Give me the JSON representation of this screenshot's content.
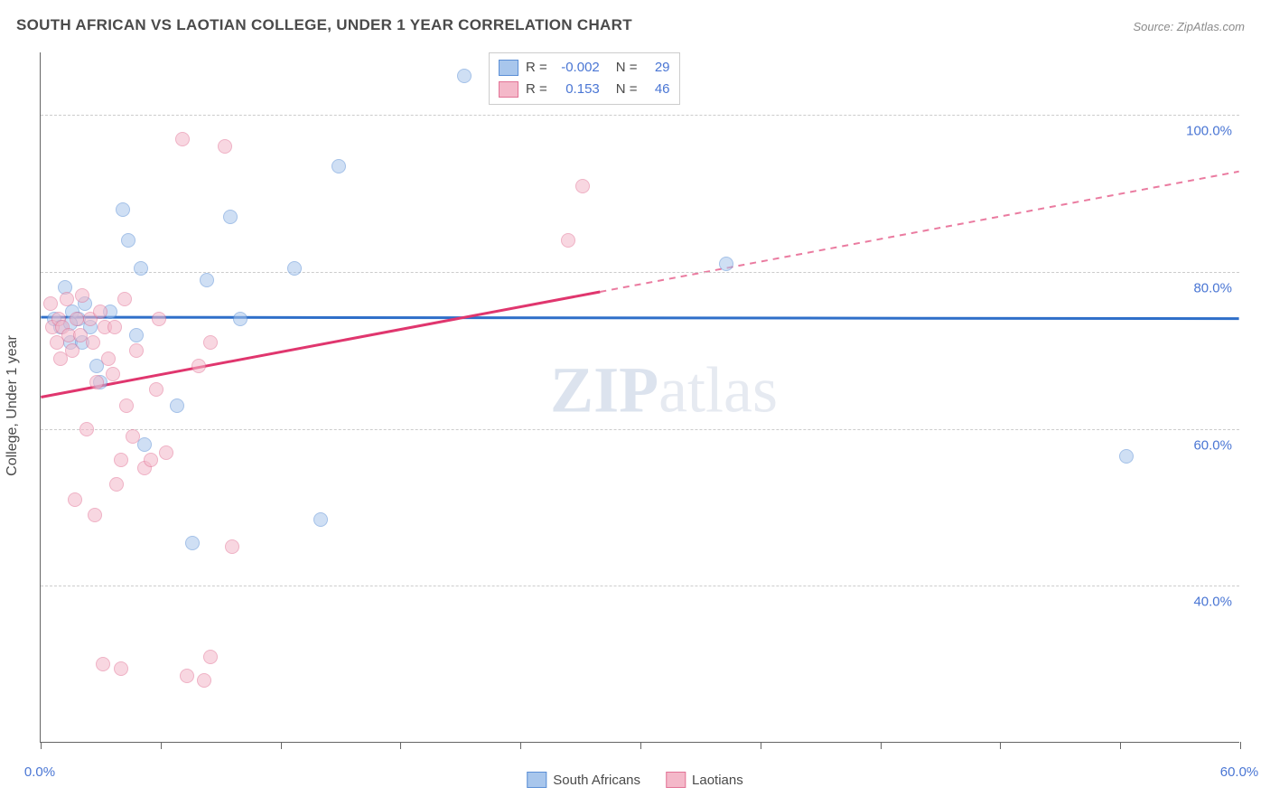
{
  "title": "SOUTH AFRICAN VS LAOTIAN COLLEGE, UNDER 1 YEAR CORRELATION CHART",
  "source": "Source: ZipAtlas.com",
  "y_axis_label": "College, Under 1 year",
  "watermark": {
    "bold": "ZIP",
    "rest": "atlas"
  },
  "chart": {
    "type": "scatter",
    "xlim": [
      0,
      60
    ],
    "ylim": [
      20,
      108
    ],
    "x_ticks": [
      0,
      6,
      12,
      18,
      24,
      30,
      36,
      42,
      48,
      54,
      60
    ],
    "x_tick_labels": {
      "0": "0.0%",
      "60": "60.0%"
    },
    "y_gridlines": [
      40,
      60,
      80,
      100
    ],
    "y_tick_labels": {
      "40": "40.0%",
      "60": "60.0%",
      "80": "80.0%",
      "100": "100.0%"
    },
    "background_color": "#ffffff",
    "grid_color": "#cccccc",
    "axis_color": "#666666",
    "label_color": "#4a76d4",
    "point_radius": 8,
    "point_opacity": 0.55,
    "series": [
      {
        "key": "south_africans",
        "label": "South Africans",
        "fill": "#a8c6ec",
        "stroke": "#5b8fd6",
        "trend": {
          "slope": -0.003,
          "intercept": 74.2,
          "solid_to_x": 60,
          "color": "#2f6fc9",
          "width": 3
        },
        "stats": {
          "R": "-0.002",
          "N": "29"
        },
        "points": [
          {
            "x": 0.7,
            "y": 74
          },
          {
            "x": 1.0,
            "y": 73
          },
          {
            "x": 1.2,
            "y": 78
          },
          {
            "x": 1.5,
            "y": 71
          },
          {
            "x": 1.6,
            "y": 75
          },
          {
            "x": 1.9,
            "y": 74
          },
          {
            "x": 21.2,
            "y": 105
          },
          {
            "x": 14.9,
            "y": 93.5
          },
          {
            "x": 9.5,
            "y": 87
          },
          {
            "x": 4.1,
            "y": 88
          },
          {
            "x": 4.4,
            "y": 84
          },
          {
            "x": 5.0,
            "y": 80.5
          },
          {
            "x": 12.7,
            "y": 80.5
          },
          {
            "x": 8.3,
            "y": 79
          },
          {
            "x": 7.6,
            "y": 45.5
          },
          {
            "x": 5.2,
            "y": 58
          },
          {
            "x": 34.3,
            "y": 81
          },
          {
            "x": 54.3,
            "y": 56.5
          },
          {
            "x": 10.0,
            "y": 74
          },
          {
            "x": 3.0,
            "y": 66
          },
          {
            "x": 2.2,
            "y": 76
          },
          {
            "x": 2.8,
            "y": 68
          },
          {
            "x": 2.1,
            "y": 71
          },
          {
            "x": 6.8,
            "y": 63
          },
          {
            "x": 4.8,
            "y": 72
          },
          {
            "x": 14.0,
            "y": 48.5
          },
          {
            "x": 3.5,
            "y": 75
          },
          {
            "x": 2.5,
            "y": 73
          },
          {
            "x": 1.5,
            "y": 73.5
          }
        ]
      },
      {
        "key": "laotians",
        "label": "Laotians",
        "fill": "#f4b8c9",
        "stroke": "#e27396",
        "trend": {
          "slope": 0.48,
          "intercept": 64.0,
          "solid_to_x": 28,
          "color": "#e0366e",
          "width": 3
        },
        "stats": {
          "R": "0.153",
          "N": "46"
        },
        "points": [
          {
            "x": 0.5,
            "y": 76
          },
          {
            "x": 0.6,
            "y": 73
          },
          {
            "x": 0.8,
            "y": 71
          },
          {
            "x": 0.9,
            "y": 74
          },
          {
            "x": 1.0,
            "y": 69
          },
          {
            "x": 1.1,
            "y": 73
          },
          {
            "x": 1.3,
            "y": 76.5
          },
          {
            "x": 1.4,
            "y": 72
          },
          {
            "x": 1.6,
            "y": 70
          },
          {
            "x": 1.8,
            "y": 74
          },
          {
            "x": 2.0,
            "y": 72
          },
          {
            "x": 2.1,
            "y": 77
          },
          {
            "x": 2.5,
            "y": 74
          },
          {
            "x": 2.6,
            "y": 71
          },
          {
            "x": 2.8,
            "y": 66
          },
          {
            "x": 3.0,
            "y": 75
          },
          {
            "x": 3.2,
            "y": 73
          },
          {
            "x": 3.4,
            "y": 69
          },
          {
            "x": 3.6,
            "y": 67
          },
          {
            "x": 3.8,
            "y": 53
          },
          {
            "x": 4.0,
            "y": 56
          },
          {
            "x": 4.3,
            "y": 63
          },
          {
            "x": 4.6,
            "y": 59
          },
          {
            "x": 4.8,
            "y": 70
          },
          {
            "x": 5.2,
            "y": 55
          },
          {
            "x": 5.5,
            "y": 56
          },
          {
            "x": 5.9,
            "y": 74
          },
          {
            "x": 6.3,
            "y": 57
          },
          {
            "x": 7.1,
            "y": 97
          },
          {
            "x": 7.9,
            "y": 68
          },
          {
            "x": 8.5,
            "y": 71
          },
          {
            "x": 9.2,
            "y": 96
          },
          {
            "x": 9.6,
            "y": 45
          },
          {
            "x": 4.0,
            "y": 29.5
          },
          {
            "x": 5.8,
            "y": 65
          },
          {
            "x": 7.3,
            "y": 28.5
          },
          {
            "x": 8.2,
            "y": 28
          },
          {
            "x": 8.5,
            "y": 31
          },
          {
            "x": 26.4,
            "y": 84
          },
          {
            "x": 27.1,
            "y": 91
          },
          {
            "x": 1.7,
            "y": 51
          },
          {
            "x": 2.3,
            "y": 60
          },
          {
            "x": 3.7,
            "y": 73
          },
          {
            "x": 4.2,
            "y": 76.5
          },
          {
            "x": 2.7,
            "y": 49
          },
          {
            "x": 3.1,
            "y": 30
          }
        ]
      }
    ]
  },
  "legend": {
    "items": [
      {
        "label": "South Africans",
        "fill": "#a8c6ec",
        "stroke": "#5b8fd6"
      },
      {
        "label": "Laotians",
        "fill": "#f4b8c9",
        "stroke": "#e27396"
      }
    ]
  }
}
